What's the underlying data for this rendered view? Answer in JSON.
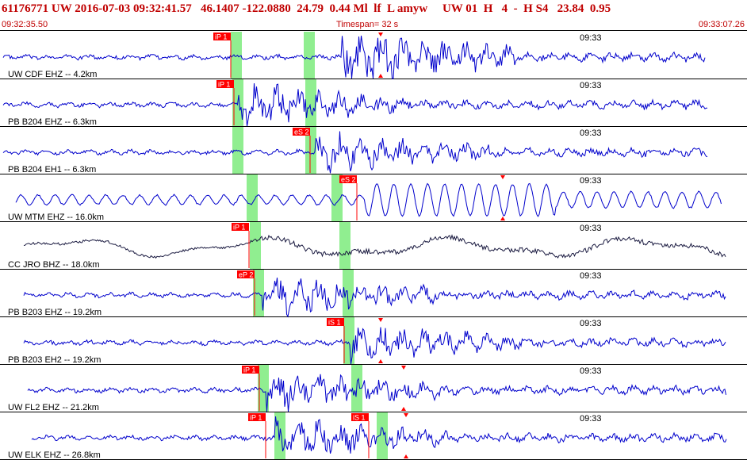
{
  "header": {
    "summary": "61176771 UW 2016-07-03 09:32:41.57   46.1407 -122.0880  24.79  0.44 Ml  lf  L amyw     UW 01  H   4  -  H S4   23.84  0.95",
    "start_time": "09:32:35.50",
    "timespan": "Timespan=  32 s",
    "end_time": "09:33:07.26"
  },
  "minute_label": "09:33",
  "colors": {
    "header_text": "#c00000",
    "trace": "#0000cc",
    "trace_dark": "#1a1a40",
    "pick_flag": "#ff0000",
    "pick_window": "#90ee90"
  },
  "traces": [
    {
      "label": "UW CDF EHZ -- 4.2km",
      "color": "trace",
      "picks": [
        {
          "text": "iP 1"
        }
      ],
      "arrow_markers": 2
    },
    {
      "label": "PB B204 EHZ -- 6.3km",
      "color": "trace",
      "picks": [
        {
          "text": "iP 1"
        }
      ],
      "arrow_markers": 0
    },
    {
      "label": "PB B204 EH1 -- 6.3km",
      "color": "trace",
      "picks": [
        {
          "text": "eS 2"
        }
      ],
      "arrow_markers": 0
    },
    {
      "label": "UW MTM EHZ -- 16.0km",
      "color": "trace",
      "picks": [
        {
          "text": "eS 2"
        }
      ],
      "arrow_markers": 2
    },
    {
      "label": "CC JRO BHZ -- 18.0km",
      "color": "trace_dark",
      "picks": [
        {
          "text": "iP 1"
        }
      ],
      "arrow_markers": 0
    },
    {
      "label": "PB B203 EHZ -- 19.2km",
      "color": "trace",
      "picks": [
        {
          "text": "eP 2"
        }
      ],
      "arrow_markers": 0
    },
    {
      "label": "PB B203 EH2 -- 19.2km",
      "color": "trace",
      "picks": [
        {
          "text": "iS 1"
        }
      ],
      "arrow_markers": 1
    },
    {
      "label": "UW FL2 EHZ -- 21.2km",
      "color": "trace",
      "picks": [
        {
          "text": "iP 1"
        }
      ],
      "arrow_markers": 2
    },
    {
      "label": "UW ELK EHZ -- 26.8km",
      "color": "trace",
      "picks": [
        {
          "text": "iP 1"
        },
        {
          "text": "iS 1"
        }
      ],
      "arrow_markers": 2
    }
  ]
}
